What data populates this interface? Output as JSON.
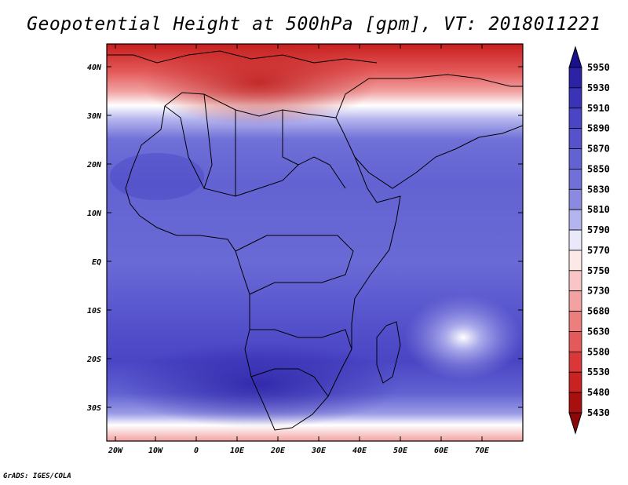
{
  "title": "Geopotential Height at 500hPa [gpm], VT: 2018011221",
  "credit": "GrADS: IGES/COLA",
  "map": {
    "lon_labels": [
      "20W",
      "10W",
      "0",
      "10E",
      "20E",
      "30E",
      "40E",
      "50E",
      "60E",
      "70E"
    ],
    "lat_labels": [
      "40N",
      "30N",
      "20N",
      "10N",
      "EQ",
      "10S",
      "20S",
      "30S"
    ]
  },
  "colorbar": {
    "levels": [
      "5950",
      "5930",
      "5910",
      "5890",
      "5870",
      "5850",
      "5830",
      "5810",
      "5790",
      "5770",
      "5750",
      "5730",
      "5680",
      "5630",
      "5580",
      "5530",
      "5480",
      "5430"
    ],
    "colors": [
      "#1a0f8c",
      "#2b22a6",
      "#3a33b8",
      "#4a45c4",
      "#5552cc",
      "#6262d2",
      "#7070d8",
      "#8a8ae0",
      "#b4b4ee",
      "#e9e9fb",
      "#fde8e8",
      "#f8c6c6",
      "#f2a2a2",
      "#ec7e7e",
      "#e45a5a",
      "#da3838",
      "#c82222",
      "#a80f0f",
      "#8c0808"
    ]
  }
}
